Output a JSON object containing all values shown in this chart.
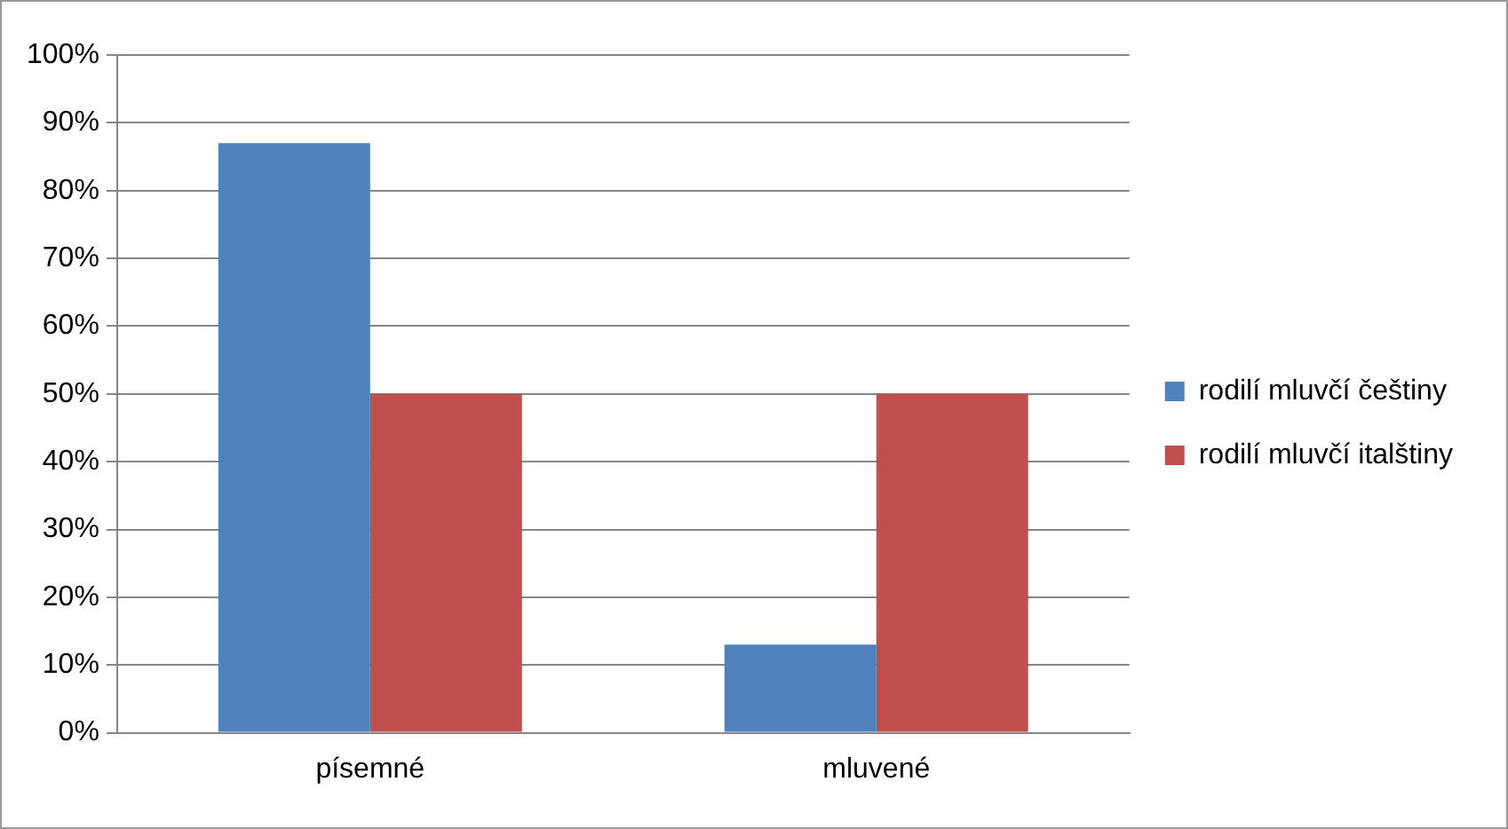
{
  "chart_data": {
    "type": "bar",
    "categories": [
      "písemné",
      "mluvené"
    ],
    "series": [
      {
        "name": "rodilí mluvčí češtiny",
        "color": "#4f81bd",
        "values": [
          87,
          13
        ]
      },
      {
        "name": "rodilí mluvčí italštiny",
        "color": "#c0504d",
        "values": [
          50,
          50
        ]
      }
    ],
    "ylim": [
      0,
      100
    ],
    "yticks": [
      {
        "value": 0,
        "label": "0%"
      },
      {
        "value": 10,
        "label": "10%"
      },
      {
        "value": 20,
        "label": "20%"
      },
      {
        "value": 30,
        "label": "30%"
      },
      {
        "value": 40,
        "label": "40%"
      },
      {
        "value": 50,
        "label": "50%"
      },
      {
        "value": 60,
        "label": "60%"
      },
      {
        "value": 70,
        "label": "70%"
      },
      {
        "value": 80,
        "label": "80%"
      },
      {
        "value": 90,
        "label": "90%"
      },
      {
        "value": 100,
        "label": "100%"
      }
    ],
    "grid": "y",
    "legend": "right"
  }
}
